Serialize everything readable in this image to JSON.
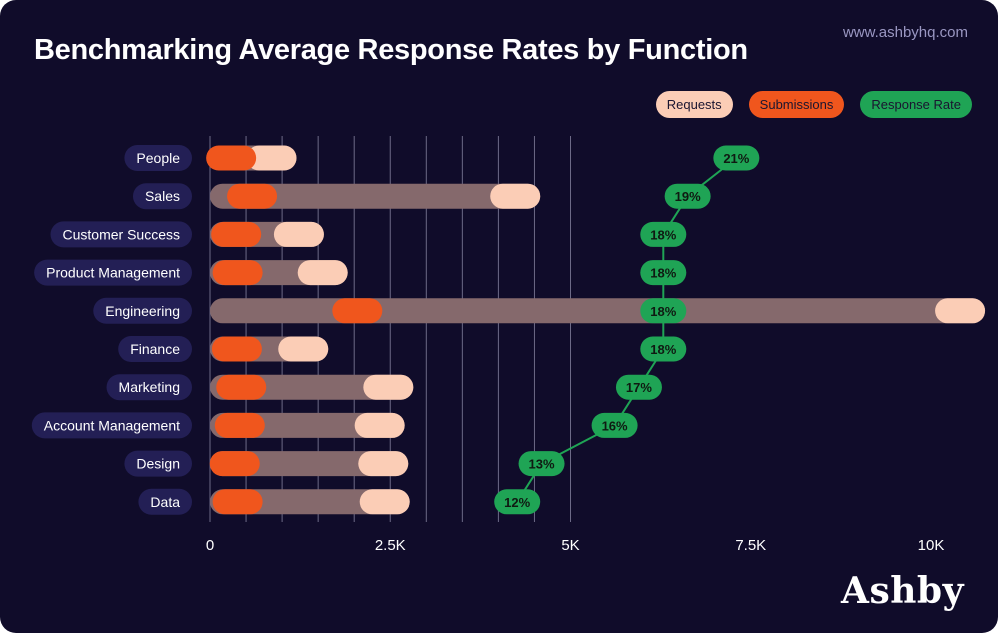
{
  "header": {
    "title": "Benchmarking Average Response Rates by Function",
    "site": "www.ashbyhq.com",
    "logo": "Ashby"
  },
  "legend": {
    "requests": "Requests",
    "submissions": "Submissions",
    "response_rate": "Response Rate"
  },
  "colors": {
    "background": "#100c2a",
    "track": "#85696c",
    "requests": "#fbcdb6",
    "submissions": "#f0561d",
    "response_rate": "#1fa455",
    "label_pill": "#231f55",
    "grid": "#8c8aa6"
  },
  "chart_data": {
    "type": "bar",
    "title": "Benchmarking Average Response Rates by Function",
    "categories": [
      "People",
      "Sales",
      "Customer Success",
      "Product Management",
      "Engineering",
      "Finance",
      "Marketing",
      "Account Management",
      "Design",
      "Data"
    ],
    "series": [
      {
        "name": "Requests",
        "values": [
          1200,
          4580,
          1580,
          1910,
          10750,
          1640,
          2820,
          2700,
          2750,
          2770
        ]
      },
      {
        "name": "Submissions",
        "values": [
          640,
          930,
          710,
          730,
          2390,
          720,
          780,
          760,
          690,
          730
        ]
      },
      {
        "name": "Response Rate",
        "values": [
          21,
          19,
          18,
          18,
          18,
          18,
          17,
          16,
          13,
          12
        ],
        "labels": [
          "21%",
          "19%",
          "18%",
          "18%",
          "18%",
          "18%",
          "17%",
          "16%",
          "13%",
          "12%"
        ]
      }
    ],
    "xlim": [
      0,
      10750
    ],
    "xticks": [
      0,
      2500,
      5000,
      7500,
      10000
    ],
    "xtick_labels": [
      "0",
      "2.5K",
      "5K",
      "7.5K",
      "10K"
    ],
    "grid": true,
    "legend_position": "top-right"
  }
}
